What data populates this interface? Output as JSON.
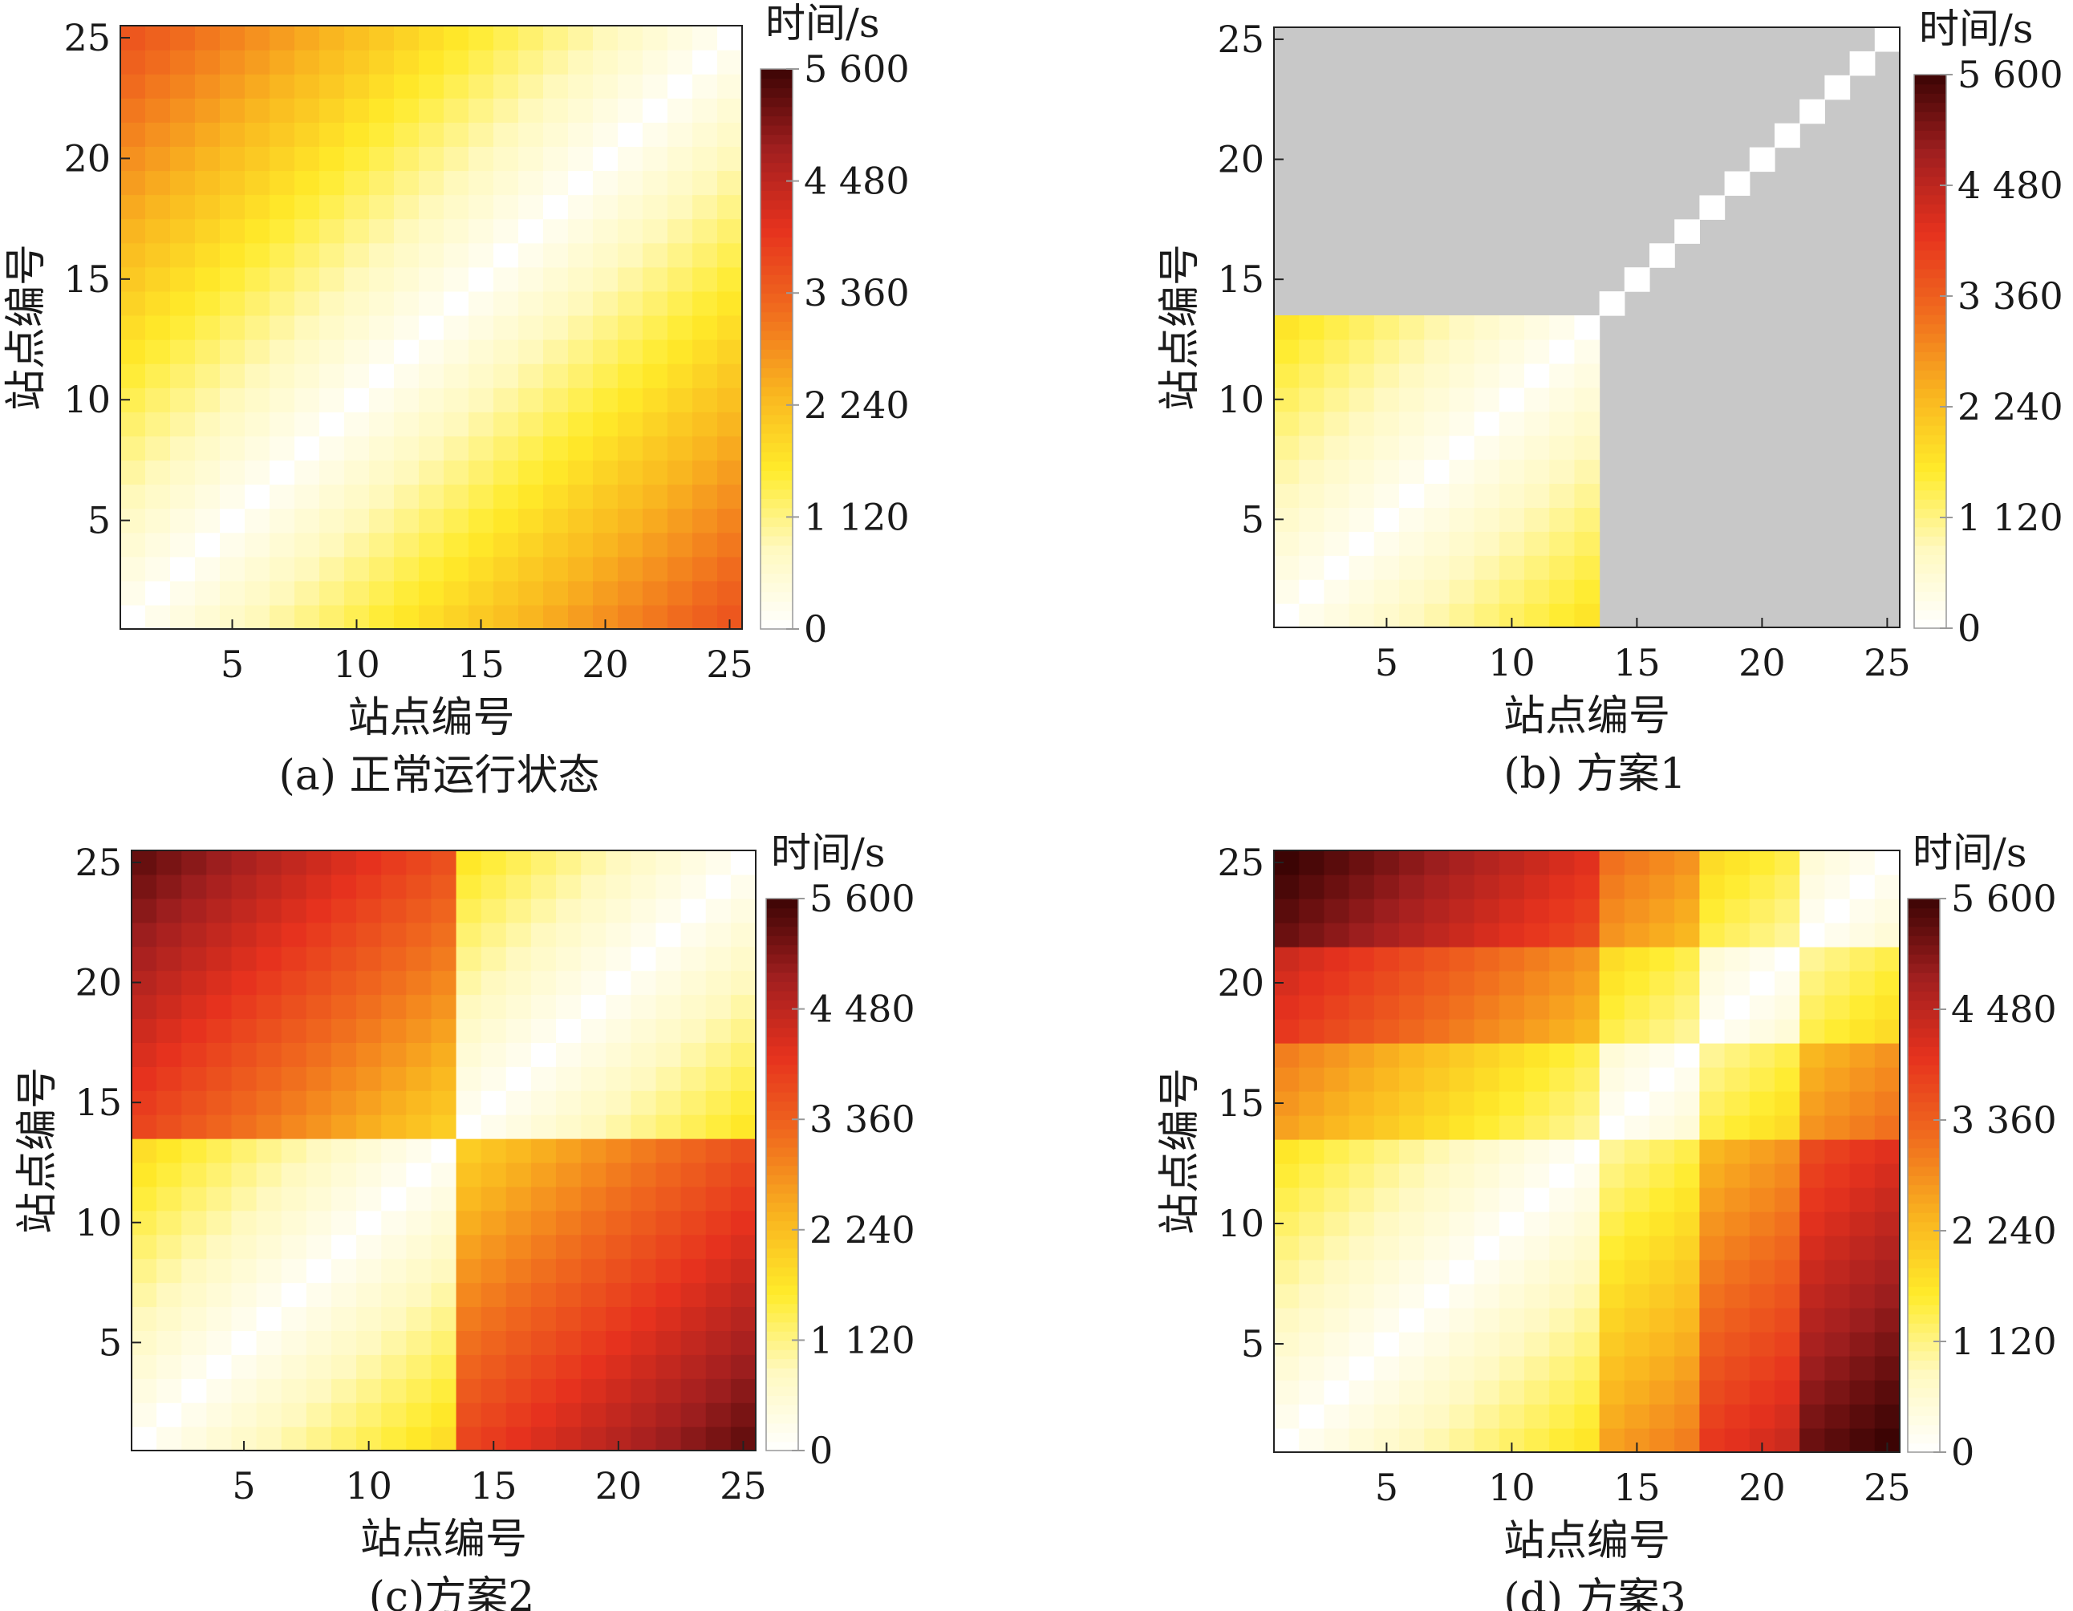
{
  "chart_data": [
    {
      "type": "heatmap",
      "panel_id": "a",
      "caption": "(a) 正常运行状态",
      "xlabel": "站点编号",
      "ylabel": "站点编号",
      "x_ticks": [
        5,
        10,
        15,
        20,
        25
      ],
      "y_ticks": [
        5,
        10,
        15,
        20,
        25
      ],
      "xlim": [
        0.5,
        25.5
      ],
      "ylim": [
        0.5,
        25.5
      ],
      "colorbar": {
        "title": "时间/s",
        "range": [
          0,
          5600
        ],
        "ticks": [
          0,
          1120,
          2240,
          3360,
          4480,
          5600
        ],
        "tick_labels": [
          "0",
          "1 120",
          "2 240",
          "3 360",
          "4 480",
          "5 600"
        ]
      },
      "grid": false,
      "model": {
        "kind": "linear",
        "rate_per_station": 140,
        "min_offdiag": 120,
        "max_total": 3500
      }
    },
    {
      "type": "heatmap",
      "panel_id": "b",
      "caption": "(b) 方案1",
      "xlabel": "站点编号",
      "ylabel": "站点编号",
      "x_ticks": [
        5,
        10,
        15,
        20,
        25
      ],
      "y_ticks": [
        5,
        10,
        15,
        20,
        25
      ],
      "xlim": [
        0.5,
        25.5
      ],
      "ylim": [
        0.5,
        25.5
      ],
      "colorbar": {
        "title": "时间/s",
        "range": [
          0,
          5600
        ],
        "ticks": [
          0,
          1120,
          2240,
          3360,
          4480,
          5600
        ],
        "tick_labels": [
          "0",
          "1 120",
          "2 240",
          "3 360",
          "4 480",
          "5 600"
        ]
      },
      "grid": false,
      "model": {
        "kind": "truncated",
        "rate_per_station": 130,
        "min_offdiag": 120,
        "active_stations": 13,
        "inactive_color": "#c8c8c8"
      }
    },
    {
      "type": "heatmap",
      "panel_id": "c",
      "caption": "(c)方案2",
      "xlabel": "站点编号",
      "ylabel": "站点编号",
      "x_ticks": [
        5,
        10,
        15,
        20,
        25
      ],
      "y_ticks": [
        5,
        10,
        15,
        20,
        25
      ],
      "xlim": [
        0.5,
        25.5
      ],
      "ylim": [
        0.5,
        25.5
      ],
      "colorbar": {
        "title": "时间/s",
        "range": [
          0,
          5600
        ],
        "ticks": [
          0,
          1120,
          2240,
          3360,
          4480,
          5600
        ],
        "tick_labels": [
          "0",
          "1 120",
          "2 240",
          "3 360",
          "4 480",
          "5 600"
        ]
      },
      "grid": false,
      "model": {
        "kind": "transfer",
        "rate_per_station": 140,
        "min_offdiag": 100,
        "break_after": [
          13
        ],
        "transfer_penalty": 1800,
        "max_total": 5600
      }
    },
    {
      "type": "heatmap",
      "panel_id": "d",
      "caption": "(d) 方案3",
      "xlabel": "站点编号",
      "ylabel": "站点编号",
      "x_ticks": [
        5,
        10,
        15,
        20,
        25
      ],
      "y_ticks": [
        5,
        10,
        15,
        20,
        25
      ],
      "xlim": [
        0.5,
        25.5
      ],
      "ylim": [
        0.5,
        25.5
      ],
      "colorbar": {
        "title": "时间/s",
        "range": [
          0,
          5600
        ],
        "ticks": [
          0,
          1120,
          2240,
          3360,
          4480,
          5600
        ],
        "tick_labels": [
          "0",
          "1 120",
          "2 240",
          "3 360",
          "4 480",
          "5 600"
        ]
      },
      "grid": false,
      "model": {
        "kind": "multi_transfer",
        "rate_per_station": 130,
        "min_offdiag": 100,
        "break_after": [
          13,
          17,
          21
        ],
        "transfer_penalty": 800,
        "max_total": 5600
      }
    }
  ],
  "colors": {
    "colormap_hot_stops": [
      "#ffffff",
      "#fff9c0",
      "#ffeb2a",
      "#f9b31f",
      "#f06b1e",
      "#e6321e",
      "#a11f1f",
      "#3c0404"
    ],
    "axis": "#222222",
    "inactive": "#c8c8c8"
  }
}
